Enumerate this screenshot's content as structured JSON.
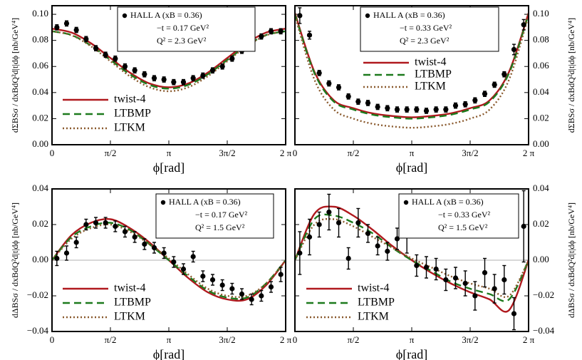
{
  "chart_data": [
    {
      "type": "line",
      "y_axis_side": "left",
      "y_label": "dΣBSσ / dxBdQ²d|t|dϕ [nb/GeV⁴]",
      "x_label": "ϕ[rad]",
      "annotations": [
        "HALL A (xB = 0.36)",
        "−t = 0.17 GeV²",
        "Q² = 2.3   GeV²"
      ],
      "xlim": [
        0,
        6.2832
      ],
      "xticks": [
        0,
        {
          "value": 1.5708,
          "label": "π/2"
        },
        {
          "value": 3.1416,
          "label": "π"
        },
        {
          "value": 4.7124,
          "label": "3π/2"
        },
        {
          "value": 6.2832,
          "label": "2 π"
        }
      ],
      "ylim": [
        0,
        0.1066
      ],
      "yticks": [
        {
          "value": 0,
          "label": "0.00"
        },
        {
          "value": 0.02,
          "label": "0.02"
        },
        {
          "value": 0.04,
          "label": "0.04"
        },
        {
          "value": 0.06,
          "label": "0.06"
        },
        {
          "value": 0.08,
          "label": "0.08"
        },
        {
          "value": 0.1,
          "label": "0.10"
        }
      ],
      "zero_line": false,
      "x": [
        0,
        0.5236,
        1.0472,
        1.5708,
        2.0944,
        2.618,
        3.1416,
        3.6652,
        4.1888,
        4.7124,
        5.236,
        5.7596,
        6.2832
      ],
      "series": [
        {
          "name": "twist-4",
          "color": "#b0191e",
          "dash": "solid",
          "values": [
            0.089,
            0.086,
            0.0778,
            0.0665,
            0.0553,
            0.047,
            0.044,
            0.047,
            0.0553,
            0.0665,
            0.0778,
            0.086,
            0.089
          ]
        },
        {
          "name": "LTBMP",
          "color": "#1d7a1d",
          "dash": "dashed",
          "values": [
            0.087,
            0.0841,
            0.076,
            0.065,
            0.054,
            0.0459,
            0.043,
            0.0459,
            0.054,
            0.065,
            0.076,
            0.0841,
            0.087
          ]
        },
        {
          "name": "LTKM",
          "color": "#8a5a2e",
          "dash": "dotted",
          "values": [
            0.087,
            0.0839,
            0.0755,
            0.064,
            0.0525,
            0.0441,
            0.041,
            0.0441,
            0.0525,
            0.064,
            0.0755,
            0.0839,
            0.087
          ]
        }
      ],
      "points": {
        "x": [
          0.1309,
          0.3927,
          0.6545,
          0.9163,
          1.1781,
          1.4399,
          1.7017,
          1.9635,
          2.2253,
          2.4871,
          2.7489,
          3.0107,
          3.2725,
          3.5343,
          3.7961,
          4.0579,
          4.3197,
          4.5815,
          4.8433,
          5.1051,
          5.3669,
          5.6287,
          5.8905,
          6.1523
        ],
        "values": [
          0.09,
          0.093,
          0.088,
          0.081,
          0.074,
          0.069,
          0.066,
          0.06,
          0.057,
          0.054,
          0.051,
          0.05,
          0.048,
          0.048,
          0.051,
          0.053,
          0.057,
          0.06,
          0.066,
          0.072,
          0.077,
          0.083,
          0.087,
          0.087
        ],
        "errors": [
          0.002,
          0.002,
          0.002,
          0.002,
          0.002,
          0.002,
          0.002,
          0.002,
          0.002,
          0.002,
          0.002,
          0.002,
          0.002,
          0.002,
          0.002,
          0.002,
          0.002,
          0.002,
          0.002,
          0.002,
          0.002,
          0.002,
          0.002,
          0.002
        ]
      }
    },
    {
      "type": "line",
      "y_axis_side": "right",
      "y_label": "dΣBSσ / dxBdQ²d|t|dϕ [nb/GeV⁴]",
      "x_label": "ϕ[rad]",
      "annotations": [
        "HALL A (xB = 0.36)",
        "−t = 0.33 GeV²",
        "Q² = 2.3   GeV²"
      ],
      "xlim": [
        0,
        6.2832
      ],
      "xticks": [
        0,
        {
          "value": 1.5708,
          "label": "π/2"
        },
        {
          "value": 3.1416,
          "label": "π"
        },
        {
          "value": 4.7124,
          "label": "3π/2"
        },
        {
          "value": 6.2832,
          "label": "2 π"
        }
      ],
      "ylim": [
        0,
        0.1066
      ],
      "yticks": [
        {
          "value": 0,
          "label": "0.00"
        },
        {
          "value": 0.02,
          "label": "0.02"
        },
        {
          "value": 0.04,
          "label": "0.04"
        },
        {
          "value": 0.06,
          "label": "0.06"
        },
        {
          "value": 0.08,
          "label": "0.08"
        },
        {
          "value": 0.1,
          "label": "0.10"
        }
      ],
      "zero_line": false,
      "x": [
        0,
        0.5236,
        1.0472,
        1.5708,
        2.0944,
        2.618,
        3.1416,
        3.6652,
        4.1888,
        4.7124,
        5.236,
        5.7596,
        6.2832
      ],
      "series": [
        {
          "name": "twist-4",
          "color": "#b0191e",
          "dash": "solid",
          "values": [
            0.101,
            0.056,
            0.034,
            0.028,
            0.024,
            0.022,
            0.021,
            0.022,
            0.024,
            0.028,
            0.034,
            0.056,
            0.101
          ]
        },
        {
          "name": "LTBMP",
          "color": "#1d7a1d",
          "dash": "dashed",
          "values": [
            0.1,
            0.055,
            0.033,
            0.027,
            0.023,
            0.021,
            0.02,
            0.021,
            0.023,
            0.027,
            0.033,
            0.055,
            0.1
          ]
        },
        {
          "name": "LTKM",
          "color": "#8a5a2e",
          "dash": "dotted",
          "values": [
            0.099,
            0.05,
            0.027,
            0.02,
            0.016,
            0.014,
            0.013,
            0.014,
            0.016,
            0.02,
            0.027,
            0.05,
            0.099
          ]
        }
      ],
      "points": {
        "x": [
          0.1309,
          0.3927,
          0.6545,
          0.9163,
          1.1781,
          1.4399,
          1.7017,
          1.9635,
          2.2253,
          2.4871,
          2.7489,
          3.0107,
          3.2725,
          3.5343,
          3.7961,
          4.0579,
          4.3197,
          4.5815,
          4.8433,
          5.1051,
          5.3669,
          5.6287,
          5.8905,
          6.1523
        ],
        "values": [
          0.099,
          0.084,
          0.055,
          0.047,
          0.044,
          0.037,
          0.033,
          0.032,
          0.029,
          0.028,
          0.027,
          0.027,
          0.027,
          0.026,
          0.027,
          0.027,
          0.03,
          0.031,
          0.034,
          0.039,
          0.046,
          0.054,
          0.073,
          0.092
        ],
        "errors": [
          0.006,
          0.003,
          0.002,
          0.002,
          0.002,
          0.002,
          0.002,
          0.002,
          0.002,
          0.002,
          0.002,
          0.002,
          0.002,
          0.002,
          0.002,
          0.002,
          0.002,
          0.002,
          0.002,
          0.002,
          0.002,
          0.002,
          0.004,
          0.004
        ]
      }
    },
    {
      "type": "line",
      "y_axis_side": "left",
      "y_label": "dΔBSσ / dxBdQ²d|t|dϕ [nb/GeV⁴]",
      "x_label": "ϕ[rad]",
      "annotations": [
        "HALL A (xB = 0.36)",
        "−t = 0.17 GeV²",
        "Q² = 1.5   GeV²"
      ],
      "xlim": [
        0,
        6.2832
      ],
      "xticks": [
        0,
        {
          "value": 1.5708,
          "label": "π/2"
        },
        {
          "value": 3.1416,
          "label": "π"
        },
        {
          "value": 4.7124,
          "label": "3π/2"
        },
        {
          "value": 6.2832,
          "label": "2 π"
        }
      ],
      "ylim": [
        -0.04,
        0.04
      ],
      "yticks": [
        {
          "value": -0.04,
          "label": "−0.04"
        },
        {
          "value": -0.02,
          "label": "−0.02"
        },
        {
          "value": 0,
          "label": "0.00"
        },
        {
          "value": 0.02,
          "label": "0.02"
        },
        {
          "value": 0.04,
          "label": "0.04"
        }
      ],
      "zero_line": true,
      "x": [
        0,
        0.5236,
        1.0472,
        1.5708,
        2.0944,
        2.618,
        3.1416,
        3.6652,
        4.1888,
        4.7124,
        5.236,
        5.7596,
        6.2832
      ],
      "series": [
        {
          "name": "twist-4",
          "color": "#b0191e",
          "dash": "solid",
          "values": [
            0,
            0.014,
            0.021,
            0.023,
            0.018,
            0.01,
            0.0,
            -0.01,
            -0.018,
            -0.022,
            -0.022,
            -0.014,
            0
          ]
        },
        {
          "name": "LTBMP",
          "color": "#1d7a1d",
          "dash": "dashed",
          "values": [
            0,
            0.013,
            0.019,
            0.021,
            0.017,
            0.009,
            0,
            -0.009,
            -0.017,
            -0.021,
            -0.021,
            -0.013,
            0
          ]
        },
        {
          "name": "LTKM",
          "color": "#8a5a2e",
          "dash": "dotted",
          "values": [
            0,
            0.012,
            0.018,
            0.02,
            0.016,
            0.009,
            0.001,
            -0.008,
            -0.016,
            -0.02,
            -0.02,
            -0.013,
            0
          ]
        }
      ],
      "points": {
        "x": [
          0.1309,
          0.3927,
          0.6545,
          0.9163,
          1.1781,
          1.4399,
          1.7017,
          1.9635,
          2.2253,
          2.4871,
          2.7489,
          3.0107,
          3.2725,
          3.5343,
          3.7961,
          4.0579,
          4.3197,
          4.5815,
          4.8433,
          5.1051,
          5.3669,
          5.6287,
          5.8905,
          6.1523
        ],
        "values": [
          0.001,
          0.004,
          0.01,
          0.02,
          0.021,
          0.021,
          0.019,
          0.016,
          0.013,
          0.009,
          0.007,
          0.004,
          -0.001,
          -0.005,
          0.002,
          -0.009,
          -0.011,
          -0.014,
          -0.016,
          -0.019,
          -0.022,
          -0.02,
          -0.015,
          -0.008
        ],
        "errors": [
          0.004,
          0.004,
          0.003,
          0.003,
          0.003,
          0.003,
          0.003,
          0.003,
          0.003,
          0.003,
          0.003,
          0.003,
          0.003,
          0.003,
          0.003,
          0.003,
          0.003,
          0.003,
          0.003,
          0.003,
          0.003,
          0.003,
          0.003,
          0.004
        ]
      }
    },
    {
      "type": "line",
      "y_axis_side": "right",
      "y_label": "dΔBSσ / dxBdQ²d|t|dϕ [nb/GeV⁴]",
      "x_label": "ϕ[rad]",
      "annotations": [
        "HALL A (xB = 0.36)",
        "−t = 0.33 GeV²",
        "Q² = 1.5   GeV²"
      ],
      "xlim": [
        0,
        6.2832
      ],
      "xticks": [
        0,
        {
          "value": 1.5708,
          "label": "π/2"
        },
        {
          "value": 3.1416,
          "label": "π"
        },
        {
          "value": 4.7124,
          "label": "3π/2"
        },
        {
          "value": 6.2832,
          "label": "2 π"
        }
      ],
      "ylim": [
        -0.04,
        0.04
      ],
      "yticks": [
        {
          "value": -0.04,
          "label": "−0.04"
        },
        {
          "value": -0.02,
          "label": "−0.02"
        },
        {
          "value": 0,
          "label": "0.00"
        },
        {
          "value": 0.02,
          "label": "0.02"
        },
        {
          "value": 0.04,
          "label": "0.04"
        }
      ],
      "zero_line": true,
      "x": [
        0,
        0.5236,
        1.0472,
        1.5708,
        2.0944,
        2.618,
        3.1416,
        3.6652,
        4.1888,
        4.7124,
        5.236,
        5.7596,
        6.2832
      ],
      "series": [
        {
          "name": "twist-4",
          "color": "#b0191e",
          "dash": "solid",
          "values": [
            0,
            0.026,
            0.03,
            0.025,
            0.017,
            0.008,
            0.0,
            -0.007,
            -0.013,
            -0.018,
            -0.022,
            -0.028,
            0
          ]
        },
        {
          "name": "LTBMP",
          "color": "#1d7a1d",
          "dash": "dashed",
          "values": [
            0,
            0.023,
            0.025,
            0.021,
            0.015,
            0.007,
            0.0,
            -0.006,
            -0.012,
            -0.016,
            -0.019,
            -0.022,
            0
          ]
        },
        {
          "name": "LTKM",
          "color": "#8a5a2e",
          "dash": "dotted",
          "values": [
            0,
            0.02,
            0.023,
            0.019,
            0.013,
            0.007,
            0.001,
            -0.004,
            -0.009,
            -0.013,
            -0.016,
            -0.02,
            0
          ]
        }
      ],
      "points": {
        "x": [
          0.1309,
          0.3927,
          0.6545,
          0.9163,
          1.1781,
          1.4399,
          1.7017,
          1.9635,
          2.2253,
          2.4871,
          2.7489,
          3.0107,
          3.2725,
          3.5343,
          3.7961,
          4.0579,
          4.3197,
          4.5815,
          4.8433,
          5.1051,
          5.3669,
          5.6287,
          5.8905,
          6.1523
        ],
        "values": [
          0.004,
          0.013,
          0.02,
          0.027,
          0.021,
          0.001,
          0.021,
          0.015,
          0.008,
          0.005,
          0.012,
          0.014,
          -0.003,
          -0.004,
          -0.005,
          -0.011,
          -0.01,
          -0.013,
          -0.02,
          -0.007,
          -0.016,
          -0.011,
          -0.03,
          0.019
        ],
        "errors": [
          0.012,
          0.01,
          0.007,
          0.01,
          0.008,
          0.006,
          0.008,
          0.005,
          0.005,
          0.005,
          0.006,
          0.01,
          0.006,
          0.006,
          0.006,
          0.006,
          0.006,
          0.007,
          0.008,
          0.008,
          0.008,
          0.008,
          0.009,
          0.02
        ]
      }
    }
  ]
}
